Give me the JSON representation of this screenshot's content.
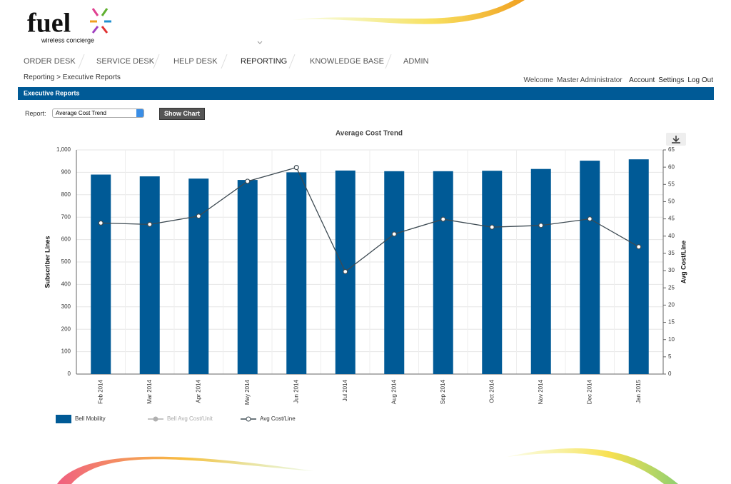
{
  "logo": {
    "brand": "fuel",
    "tagline": "wireless concierge"
  },
  "nav": [
    "ORDER DESK",
    "SERVICE DESK",
    "HELP DESK",
    "REPORTING",
    "KNOWLEDGE BASE",
    "ADMIN"
  ],
  "breadcrumb": "Reporting > Executive Reports",
  "user_menu": {
    "welcome": "Welcome",
    "user": "Master Administrator",
    "links": [
      "Account",
      "Settings",
      "Log Out"
    ]
  },
  "section_title": "Executive Reports",
  "report_form": {
    "label": "Report:",
    "selected": "Average Cost Trend",
    "button": "Show Chart"
  },
  "chart_data": {
    "type": "bar_line",
    "title": "Average Cost Trend",
    "categories": [
      "Feb 2014",
      "Mar 2014",
      "Apr 2014",
      "May 2014",
      "Jun 2014",
      "Jul 2014",
      "Aug 2014",
      "Sep 2014",
      "Oct 2014",
      "Nov 2014",
      "Dec 2014",
      "Jan 2015"
    ],
    "y_label": "Subscriber Lines",
    "y2_label": "Avg Cost/Line",
    "ylim": [
      0,
      1000
    ],
    "yticks": [
      0,
      100,
      200,
      300,
      400,
      500,
      600,
      700,
      800,
      900,
      {
        "value": 1000,
        "label": "1,000"
      }
    ],
    "y2lim": [
      0,
      65
    ],
    "y2ticks": [
      0,
      5,
      10,
      15,
      20,
      25,
      30,
      35,
      40,
      45,
      50,
      55,
      60,
      65
    ],
    "grid": true,
    "series": [
      {
        "name": "Bell Mobility",
        "color": "#005a96",
        "kind": "bar",
        "values": [
          890,
          882,
          872,
          866,
          900,
          908,
          905,
          905,
          907,
          915,
          952,
          958
        ]
      },
      {
        "name": "Bell Avg Cost/Unit",
        "color": "#b0b0b0",
        "kind": "line",
        "hidden": true,
        "axis": "y2",
        "values": [
          null,
          null,
          null,
          null,
          null,
          null,
          null,
          null,
          null,
          null,
          null,
          null
        ]
      },
      {
        "name": "Avg Cost/Line",
        "color": "#3d4a52",
        "kind": "line",
        "axis": "y2",
        "values": [
          43.8,
          43.4,
          45.8,
          55.9,
          59.9,
          29.7,
          40.6,
          44.9,
          42.6,
          43.1,
          45,
          36.9
        ]
      }
    ]
  }
}
